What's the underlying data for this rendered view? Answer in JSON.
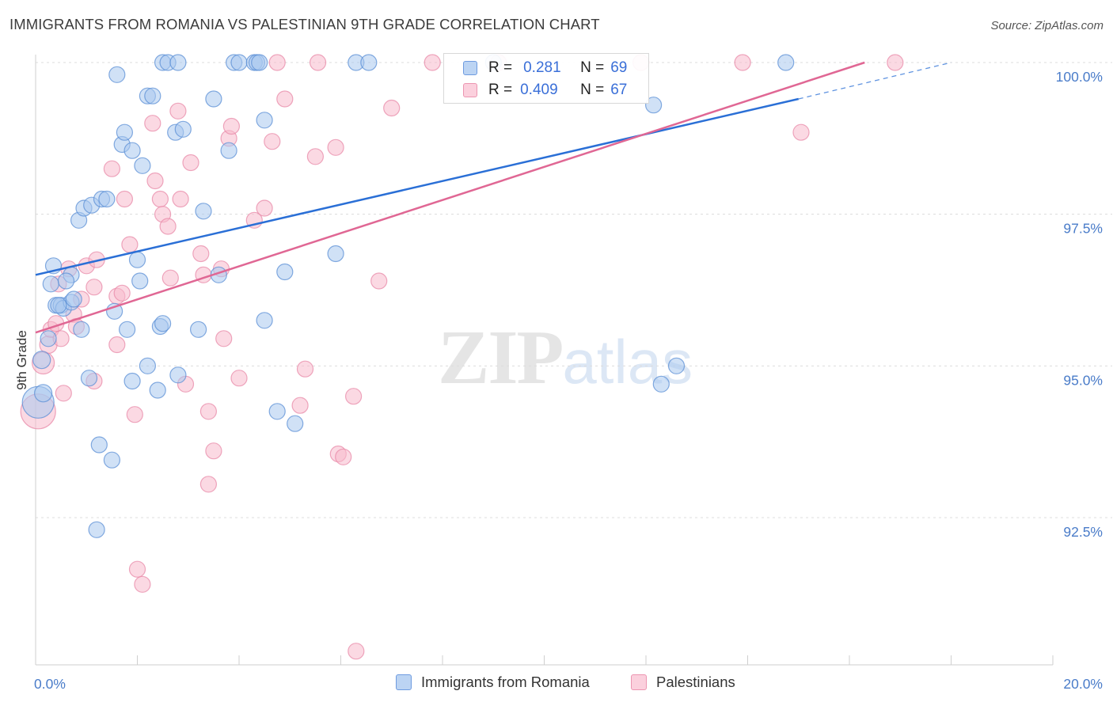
{
  "title": "IMMIGRANTS FROM ROMANIA VS PALESTINIAN 9TH GRADE CORRELATION CHART",
  "source": "Source: ZipAtlas.com",
  "watermark": {
    "zip": "ZIP",
    "atlas": "atlas"
  },
  "legend": {
    "r_label": "R =",
    "n_label": "N =",
    "rows": [
      {
        "r": "0.281",
        "n": "69"
      },
      {
        "r": "0.409",
        "n": "67"
      }
    ]
  },
  "series_names": [
    "Immigrants from Romania",
    "Palestinians"
  ],
  "colors": {
    "blue_fill": "#a9c8ef",
    "blue_stroke": "#5b8fd6",
    "blue_line": "#2a6fd6",
    "pink_fill": "#f7b9cc",
    "pink_stroke": "#e88aa8",
    "pink_line": "#e06794",
    "tick_text": "#4a7cc9",
    "grid": "#dcdcdc"
  },
  "chart_data": {
    "type": "scatter",
    "title": "IMMIGRANTS FROM ROMANIA VS PALESTINIAN 9TH GRADE CORRELATION CHART",
    "xlabel": "",
    "ylabel": "9th Grade",
    "xlim": [
      0,
      20
    ],
    "ylim": [
      90.5,
      100.4
    ],
    "x_tick_labels": [
      "0.0%",
      "20.0%"
    ],
    "y_ticks": [
      92.5,
      95.0,
      97.5,
      100.0
    ],
    "y_tick_labels": [
      "92.5%",
      "95.0%",
      "97.5%",
      "100.0%"
    ],
    "grid": true,
    "legend_position": "top-center",
    "series": [
      {
        "name": "Immigrants from Romania",
        "r": 0.281,
        "n": 69,
        "trend": {
          "x0": 0.0,
          "y0": 96.5,
          "x1": 15.0,
          "y1": 99.4,
          "dashed_to_x": 18.0,
          "dashed_to_y": 100.0
        },
        "points": [
          [
            0.05,
            94.4,
            20
          ],
          [
            0.15,
            94.55,
            11
          ],
          [
            0.12,
            95.1,
            11
          ],
          [
            0.25,
            95.45,
            10
          ],
          [
            0.35,
            96.65,
            10
          ],
          [
            0.3,
            96.35,
            10
          ],
          [
            0.4,
            96.0,
            10
          ],
          [
            0.5,
            96.0,
            10
          ],
          [
            0.55,
            95.95,
            10
          ],
          [
            0.7,
            96.05,
            10
          ],
          [
            0.75,
            96.1,
            10
          ],
          [
            0.7,
            96.5,
            10
          ],
          [
            0.6,
            96.4,
            10
          ],
          [
            0.9,
            95.6,
            10
          ],
          [
            1.05,
            94.8,
            10
          ],
          [
            1.25,
            93.7,
            10
          ],
          [
            1.5,
            93.45,
            10
          ],
          [
            1.2,
            92.3,
            10
          ],
          [
            0.85,
            97.4,
            10
          ],
          [
            0.95,
            97.6,
            10
          ],
          [
            1.1,
            97.65,
            10
          ],
          [
            1.3,
            97.75,
            10
          ],
          [
            1.4,
            97.75,
            10
          ],
          [
            1.6,
            99.8,
            10
          ],
          [
            1.7,
            98.65,
            10
          ],
          [
            1.75,
            98.85,
            10
          ],
          [
            1.9,
            98.55,
            10
          ],
          [
            2.1,
            98.3,
            10
          ],
          [
            2.2,
            99.45,
            10
          ],
          [
            2.3,
            99.45,
            10
          ],
          [
            2.0,
            96.75,
            10
          ],
          [
            2.05,
            96.4,
            10
          ],
          [
            1.55,
            95.9,
            10
          ],
          [
            1.8,
            95.6,
            10
          ],
          [
            1.9,
            94.75,
            10
          ],
          [
            2.2,
            95.0,
            10
          ],
          [
            2.4,
            94.6,
            10
          ],
          [
            2.45,
            95.65,
            10
          ],
          [
            2.5,
            95.7,
            10
          ],
          [
            2.8,
            94.85,
            10
          ],
          [
            2.75,
            98.85,
            10
          ],
          [
            2.9,
            98.9,
            10
          ],
          [
            3.3,
            97.55,
            10
          ],
          [
            3.5,
            99.4,
            10
          ],
          [
            3.6,
            96.5,
            10
          ],
          [
            3.2,
            95.6,
            10
          ],
          [
            3.8,
            98.55,
            10
          ],
          [
            4.5,
            99.05,
            10
          ],
          [
            4.5,
            95.75,
            10
          ],
          [
            4.75,
            94.25,
            10
          ],
          [
            4.9,
            96.55,
            10
          ],
          [
            5.1,
            94.05,
            10
          ],
          [
            5.9,
            96.85,
            10
          ],
          [
            2.5,
            100.0,
            10
          ],
          [
            2.6,
            100.0,
            10
          ],
          [
            2.8,
            100.0,
            10
          ],
          [
            3.9,
            100.0,
            10
          ],
          [
            4.0,
            100.0,
            10
          ],
          [
            4.3,
            100.0,
            10
          ],
          [
            4.35,
            100.0,
            10
          ],
          [
            4.4,
            100.0,
            10
          ],
          [
            6.3,
            100.0,
            10
          ],
          [
            6.55,
            100.0,
            10
          ],
          [
            9.0,
            100.0,
            10
          ],
          [
            12.15,
            99.3,
            10
          ],
          [
            14.75,
            100.0,
            10
          ],
          [
            12.3,
            94.7,
            10
          ],
          [
            12.6,
            95.0,
            10
          ],
          [
            0.45,
            96.0,
            10
          ]
        ]
      },
      {
        "name": "Palestinians",
        "r": 0.409,
        "n": 67,
        "trend": {
          "x0": 0.0,
          "y0": 95.55,
          "x1": 16.3,
          "y1": 100.0
        },
        "points": [
          [
            0.05,
            94.25,
            22
          ],
          [
            0.15,
            95.05,
            14
          ],
          [
            0.25,
            95.35,
            11
          ],
          [
            0.3,
            95.6,
            10
          ],
          [
            0.45,
            96.35,
            10
          ],
          [
            0.5,
            95.45,
            10
          ],
          [
            0.55,
            94.55,
            10
          ],
          [
            0.65,
            96.6,
            10
          ],
          [
            0.75,
            95.85,
            10
          ],
          [
            0.8,
            95.65,
            10
          ],
          [
            0.9,
            96.1,
            10
          ],
          [
            1.0,
            96.65,
            10
          ],
          [
            1.15,
            96.3,
            10
          ],
          [
            1.2,
            96.75,
            10
          ],
          [
            1.15,
            94.75,
            10
          ],
          [
            1.5,
            98.25,
            10
          ],
          [
            1.6,
            96.15,
            10
          ],
          [
            1.6,
            95.35,
            10
          ],
          [
            1.7,
            96.2,
            10
          ],
          [
            1.75,
            97.75,
            10
          ],
          [
            1.85,
            97.0,
            10
          ],
          [
            1.95,
            94.2,
            10
          ],
          [
            2.0,
            91.65,
            10
          ],
          [
            2.1,
            91.4,
            10
          ],
          [
            2.3,
            99.0,
            10
          ],
          [
            2.35,
            98.05,
            10
          ],
          [
            2.45,
            97.75,
            10
          ],
          [
            2.5,
            97.5,
            10
          ],
          [
            2.6,
            97.3,
            10
          ],
          [
            2.65,
            96.45,
            10
          ],
          [
            2.8,
            99.2,
            10
          ],
          [
            2.85,
            97.75,
            10
          ],
          [
            2.95,
            94.7,
            10
          ],
          [
            3.05,
            98.35,
            10
          ],
          [
            3.25,
            96.85,
            10
          ],
          [
            3.3,
            96.5,
            10
          ],
          [
            3.4,
            94.25,
            10
          ],
          [
            3.4,
            93.05,
            10
          ],
          [
            3.5,
            93.6,
            10
          ],
          [
            3.65,
            96.6,
            10
          ],
          [
            3.7,
            95.45,
            10
          ],
          [
            3.8,
            98.75,
            10
          ],
          [
            3.85,
            98.95,
            10
          ],
          [
            4.0,
            94.8,
            10
          ],
          [
            4.3,
            97.4,
            10
          ],
          [
            4.5,
            97.6,
            10
          ],
          [
            4.65,
            98.7,
            10
          ],
          [
            4.75,
            100.0,
            10
          ],
          [
            4.9,
            99.4,
            10
          ],
          [
            5.2,
            94.35,
            10
          ],
          [
            5.3,
            94.95,
            10
          ],
          [
            5.5,
            98.45,
            10
          ],
          [
            5.55,
            100.0,
            10
          ],
          [
            5.9,
            98.6,
            10
          ],
          [
            5.95,
            93.55,
            10
          ],
          [
            6.05,
            93.5,
            10
          ],
          [
            6.25,
            94.5,
            10
          ],
          [
            6.3,
            90.3,
            10
          ],
          [
            6.75,
            96.4,
            10
          ],
          [
            7.0,
            99.25,
            10
          ],
          [
            7.8,
            100.0,
            10
          ],
          [
            9.1,
            100.0,
            10
          ],
          [
            11.9,
            100.0,
            10
          ],
          [
            13.9,
            100.0,
            10
          ],
          [
            15.05,
            98.85,
            10
          ],
          [
            16.9,
            100.0,
            10
          ],
          [
            0.4,
            95.7,
            10
          ]
        ]
      }
    ]
  }
}
